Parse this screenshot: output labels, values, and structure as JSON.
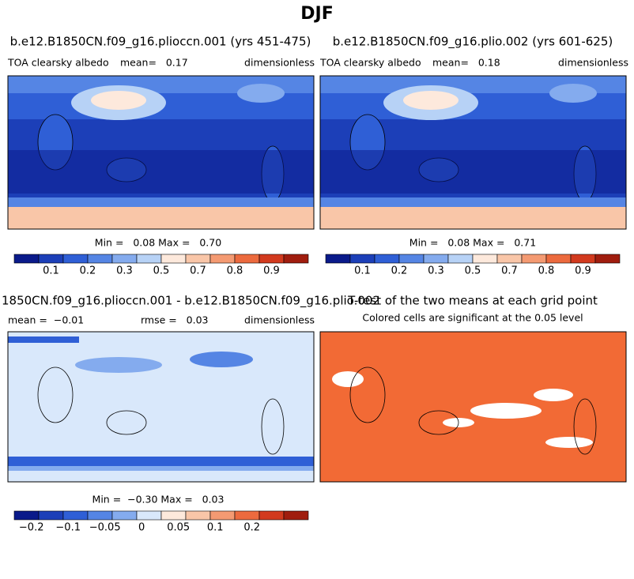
{
  "title": "DJF",
  "panels": [
    {
      "title": "b.e12.B1850CN.f09_g16.plioccn.001 (yrs 451-475)",
      "left": "TOA clearsky albedo",
      "mid": "mean=   0.17",
      "right": "dimensionless",
      "minmax": "Min =   0.08 Max =   0.70",
      "colorbar": {
        "labels": [
          "0.1",
          "0.2",
          "0.3",
          "0.5",
          "0.7",
          "0.8",
          "0.9"
        ],
        "colors": [
          "#0a1a8a",
          "#1c3fb8",
          "#2f5fd6",
          "#5585e4",
          "#84abee",
          "#b7d2f6",
          "#fde9dc",
          "#f9c6a8",
          "#f49a72",
          "#ec6a3e",
          "#d23a1e",
          "#a01d0e"
        ]
      }
    },
    {
      "title": "b.e12.B1850CN.f09_g16.plio.002 (yrs 601-625)",
      "left": "TOA clearsky albedo",
      "mid": "mean=   0.18",
      "right": "dimensionless",
      "minmax": "Min =   0.08 Max =   0.71",
      "colorbar": {
        "labels": [
          "0.1",
          "0.2",
          "0.3",
          "0.5",
          "0.7",
          "0.8",
          "0.9"
        ],
        "colors": [
          "#0a1a8a",
          "#1c3fb8",
          "#2f5fd6",
          "#5585e4",
          "#84abee",
          "#b7d2f6",
          "#fde9dc",
          "#f9c6a8",
          "#f49a72",
          "#ec6a3e",
          "#d23a1e",
          "#a01d0e"
        ]
      }
    },
    {
      "title": "1850CN.f09_g16.plioccn.001 - b.e12.B1850CN.f09_g16.plio.002",
      "left": "mean =  −0.01",
      "mid": "rmse =   0.03",
      "right": "dimensionless",
      "minmax": "Min =  −0.30 Max =   0.03",
      "colorbar": {
        "labels": [
          "−0.2",
          "−0.1",
          "−0.05",
          "0",
          "0.05",
          "0.1",
          "0.2"
        ],
        "colors": [
          "#0a1a8a",
          "#1c3fb8",
          "#2f5fd6",
          "#5585e4",
          "#84abee",
          "#d9e8fb",
          "#fde9dc",
          "#f9c6a8",
          "#f49a72",
          "#ec6a3e",
          "#d23a1e",
          "#a01d0e"
        ]
      }
    },
    {
      "title": "T-test of the two means at each grid point",
      "subtitle": "Colored cells are significant at the 0.05 level"
    }
  ]
}
